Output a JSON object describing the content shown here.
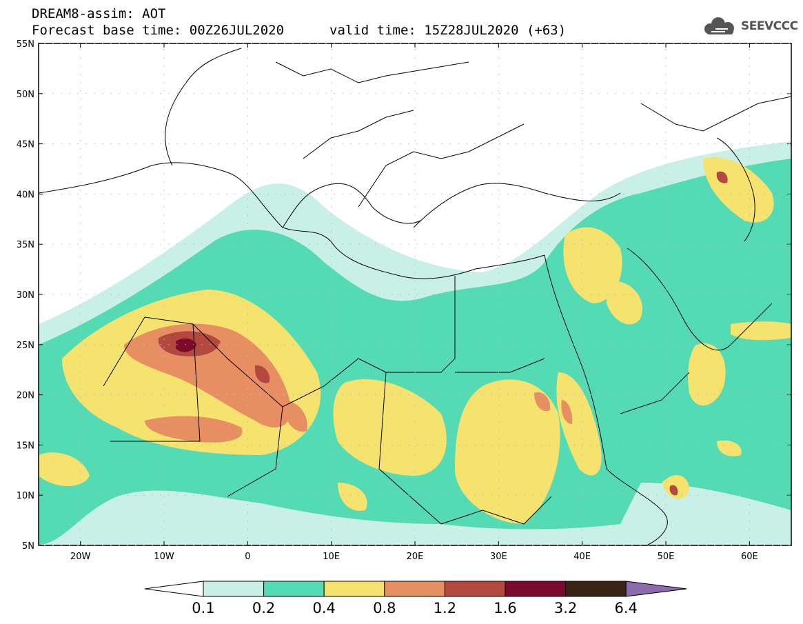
{
  "header": {
    "title": "DREAM8-assim: AOT",
    "base_time": "Forecast base time: 00Z26JUL2020",
    "valid_time": "valid time: 15Z28JUL2020 (+63)"
  },
  "logo": {
    "text": "SEEVCCC",
    "icon": "cloud-icon"
  },
  "map": {
    "lon_range": [
      -25,
      65
    ],
    "lat_range": [
      5,
      55
    ],
    "lat_labels": [
      "55N",
      "50N",
      "45N",
      "40N",
      "35N",
      "30N",
      "25N",
      "20N",
      "15N",
      "10N",
      "5N"
    ],
    "lon_labels": [
      "20W",
      "10W",
      "0",
      "10E",
      "20E",
      "30E",
      "40E",
      "50E",
      "60E"
    ],
    "field": "AOT"
  },
  "colorbar": {
    "labels": [
      "0.1",
      "0.2",
      "0.4",
      "0.8",
      "1.2",
      "1.6",
      "3.2",
      "6.4"
    ],
    "colors": [
      "#ffffff",
      "#c9f0e6",
      "#55dbb3",
      "#f5e26f",
      "#e88e63",
      "#b3483e",
      "#7d0a2c",
      "#3b2414",
      "#8f69b0"
    ]
  },
  "colors": {
    "c1": "#c9f0e6",
    "c2": "#55dbb3",
    "c3": "#f5e26f",
    "c4": "#e88e63",
    "c5": "#b3483e",
    "c6": "#7d0a2c"
  }
}
